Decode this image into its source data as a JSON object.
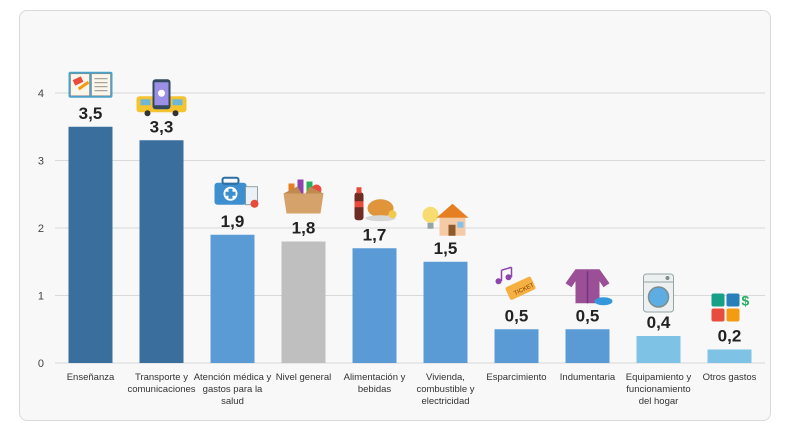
{
  "chart_data": {
    "type": "bar",
    "title": "",
    "xlabel": "",
    "ylabel": "",
    "ylim": [
      0,
      4
    ],
    "yticks": [
      "0",
      "1",
      "2",
      "3",
      "4"
    ],
    "grid": true,
    "categories": [
      "Enseñanza",
      "Transporte y comunicaciones",
      "Atención médica y gastos para la salud",
      "Nivel general",
      "Alimentación y bebidas",
      "Vivienda, combustible y electricidad",
      "Esparcimiento",
      "Indumentaria",
      "Equipamiento y funcionamiento del hogar",
      "Otros gastos"
    ],
    "values": [
      3.5,
      3.3,
      1.9,
      1.8,
      1.7,
      1.5,
      0.5,
      0.5,
      0.4,
      0.2
    ],
    "value_labels": [
      "3,5",
      "3,3",
      "1,9",
      "1,8",
      "1,7",
      "1,5",
      "0,5",
      "0,5",
      "0,4",
      "0,2"
    ],
    "category_lines": [
      [
        "Enseñanza"
      ],
      [
        "Transporte y",
        "comunicaciones"
      ],
      [
        "Atención médica y",
        "gastos para la",
        "salud"
      ],
      [
        "Nivel general"
      ],
      [
        "Alimentación y",
        "bebidas"
      ],
      [
        "Vivienda,",
        "combustible y",
        "electricidad"
      ],
      [
        "Esparcimiento"
      ],
      [
        "Indumentaria"
      ],
      [
        "Equipamiento y",
        "funcionamiento",
        "del hogar"
      ],
      [
        "Otros gastos"
      ]
    ],
    "colors": [
      "#3a6e9d",
      "#3a6e9d",
      "#5b9bd5",
      "#bfbfbf",
      "#5b9bd5",
      "#5b9bd5",
      "#5b9bd5",
      "#5b9bd5",
      "#7ec3e6",
      "#7ec3e6"
    ],
    "icons": [
      "book-icon",
      "phone-bus-icon",
      "medical-kit-icon",
      "basket-box-icon",
      "food-drink-icon",
      "house-bulb-icon",
      "ticket-music-icon",
      "jacket-shoes-icon",
      "washing-machine-icon",
      "puzzle-money-icon"
    ]
  }
}
